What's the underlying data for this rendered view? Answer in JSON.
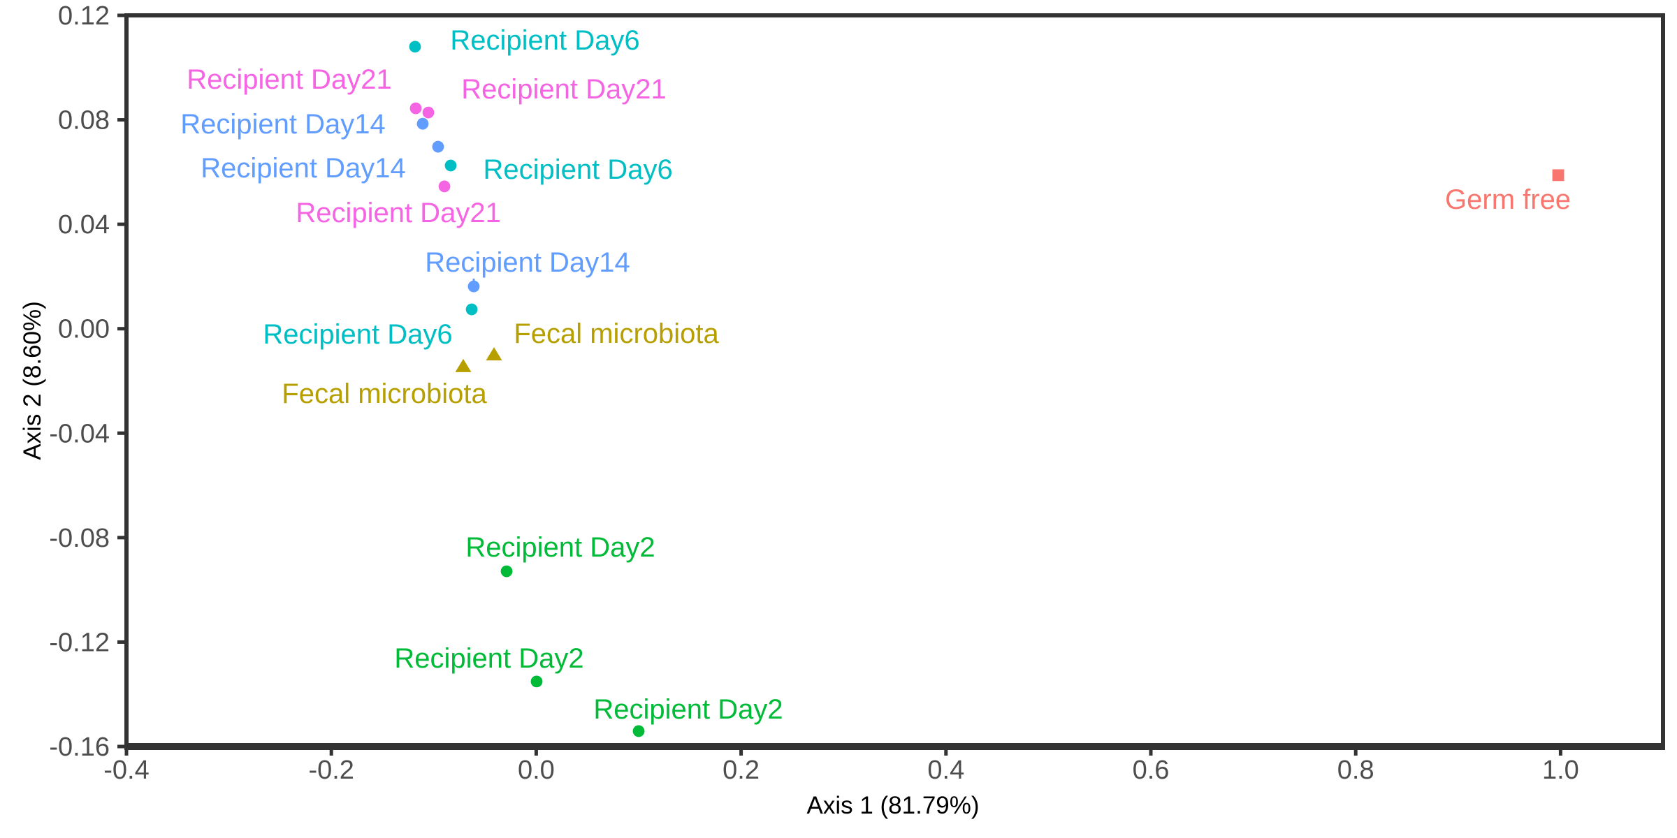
{
  "page": {
    "background": "#FFFFFF"
  },
  "chart_data": {
    "type": "scatter",
    "title": "",
    "xlabel": "Axis 1 (81.79%)",
    "ylabel": "Axis 2 (8.60%)",
    "xlim": [
      -0.4,
      1.1
    ],
    "ylim": [
      -0.16,
      0.12
    ],
    "grid": false,
    "legend": "none",
    "x_ticks": {
      "values": [
        -0.4,
        -0.2,
        0.0,
        0.2,
        0.4,
        0.6,
        0.8,
        1.0
      ],
      "labels": [
        "-0.4",
        "-0.2",
        "0.0",
        "0.2",
        "0.4",
        "0.6",
        "0.8",
        "1.0"
      ]
    },
    "y_ticks": {
      "values": [
        0.12,
        0.08,
        0.04,
        0.0,
        -0.04,
        -0.08,
        -0.12,
        -0.16
      ],
      "labels": [
        "0.12",
        "0.08",
        "0.04",
        "0.00",
        "-0.04",
        "-0.08",
        "-0.12",
        "-0.16"
      ]
    },
    "styles": {
      "axis_line_color": "#333333",
      "tick_text_color": "#4D4D4D",
      "title_color": "#000000",
      "background": "#FFFFFF"
    },
    "groups": {
      "Germ free": {
        "color": "#F8766D",
        "shape": "square"
      },
      "Fecal microbiota": {
        "color": "#B79F00",
        "shape": "triangle"
      },
      "Recipient Day2": {
        "color": "#00BA38",
        "shape": "circle"
      },
      "Recipient Day6": {
        "color": "#00BFC4",
        "shape": "circle"
      },
      "Recipient Day14": {
        "color": "#619CFF",
        "shape": "circle"
      },
      "Recipient Day21": {
        "color": "#F564E3",
        "shape": "circle"
      }
    },
    "points": [
      {
        "label": "Recipient Day6",
        "x": -0.1183,
        "y": 0.108,
        "label_x": 0.0086,
        "label_y": 0.1106
      },
      {
        "label": "Recipient Day21",
        "x": -0.1176,
        "y": 0.0844,
        "label_x": -0.2411,
        "label_y": 0.0957
      },
      {
        "label": "Recipient Day21",
        "x": -0.1053,
        "y": 0.0828,
        "label_x": 0.027,
        "label_y": 0.0919
      },
      {
        "label": "Recipient Day14",
        "x": -0.1108,
        "y": 0.0785,
        "label_x": -0.2472,
        "label_y": 0.0785
      },
      {
        "label": "Recipient Day14",
        "x": -0.0958,
        "y": 0.0697,
        "label_x": -0.2274,
        "label_y": 0.0617
      },
      {
        "label": "Recipient Day6",
        "x": -0.0835,
        "y": 0.0625,
        "label_x": 0.0407,
        "label_y": 0.0612
      },
      {
        "label": "Recipient Day21",
        "x": -0.0896,
        "y": 0.0545,
        "label_x": -0.1346,
        "label_y": 0.0446
      },
      {
        "label": "Recipient Day14",
        "x": -0.061,
        "y": 0.0162,
        "label_x": -0.0085,
        "label_y": 0.0256,
        "leader": true
      },
      {
        "label": "Recipient Day6",
        "x": -0.063,
        "y": 0.0074,
        "label_x": -0.1742,
        "label_y": -0.002
      },
      {
        "label": "Fecal microbiota",
        "x": -0.0412,
        "y": -0.01,
        "label_x": 0.0782,
        "label_y": -0.0017
      },
      {
        "label": "Fecal microbiota",
        "x": -0.0712,
        "y": -0.0145,
        "label_x": -0.1483,
        "label_y": -0.0247
      },
      {
        "label": "Recipient Day2",
        "x": -0.0289,
        "y": -0.0929,
        "label_x": 0.0236,
        "label_y": -0.0835
      },
      {
        "label": "Recipient Day2",
        "x": 0.0004,
        "y": -0.1351,
        "label_x": -0.046,
        "label_y": -0.126
      },
      {
        "label": "Recipient Day2",
        "x": 0.1,
        "y": -0.1541,
        "label_x": 0.1484,
        "label_y": -0.1456
      },
      {
        "label": "Germ free",
        "x": 0.9977,
        "y": 0.0588,
        "label_x": 0.9486,
        "label_y": 0.0497
      }
    ]
  }
}
